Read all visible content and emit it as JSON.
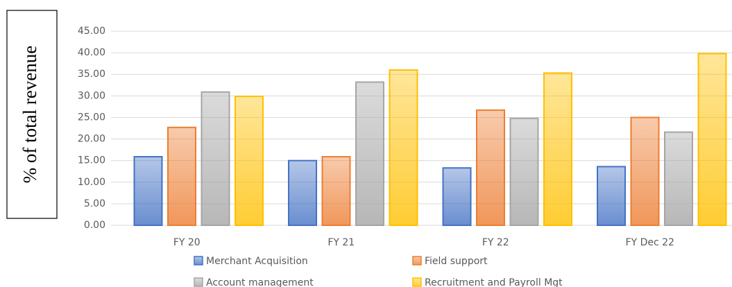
{
  "chart_data": {
    "type": "bar",
    "y_label": "% of total revenue",
    "categories": [
      "FY 20",
      "FY 21",
      "FY 22",
      "FY Dec 22"
    ],
    "series": [
      {
        "name": "Merchant Acquisition",
        "color": "#4472c4",
        "values": [
          15.9,
          15.0,
          13.3,
          13.6
        ]
      },
      {
        "name": "Field support",
        "color": "#ed7d31",
        "values": [
          22.7,
          15.9,
          26.7,
          25.0
        ]
      },
      {
        "name": "Account management",
        "color": "#a5a5a5",
        "values": [
          30.9,
          33.2,
          24.8,
          21.6
        ]
      },
      {
        "name": "Recruitment and Payroll Mgt",
        "color": "#ffc000",
        "values": [
          29.9,
          36.0,
          35.3,
          39.8
        ]
      }
    ],
    "ylim": [
      0,
      45
    ],
    "yticks": [
      {
        "value": 0,
        "label": "0.00"
      },
      {
        "value": 5,
        "label": "5.00"
      },
      {
        "value": 10,
        "label": "10.00"
      },
      {
        "value": 15,
        "label": "15.00"
      },
      {
        "value": 20,
        "label": "20.00"
      },
      {
        "value": 25,
        "label": "25.00"
      },
      {
        "value": 30,
        "label": "30.00"
      },
      {
        "value": 35,
        "label": "35.00"
      },
      {
        "value": 40,
        "label": "40.00"
      },
      {
        "value": 45,
        "label": "45.00"
      }
    ],
    "grid": true
  }
}
